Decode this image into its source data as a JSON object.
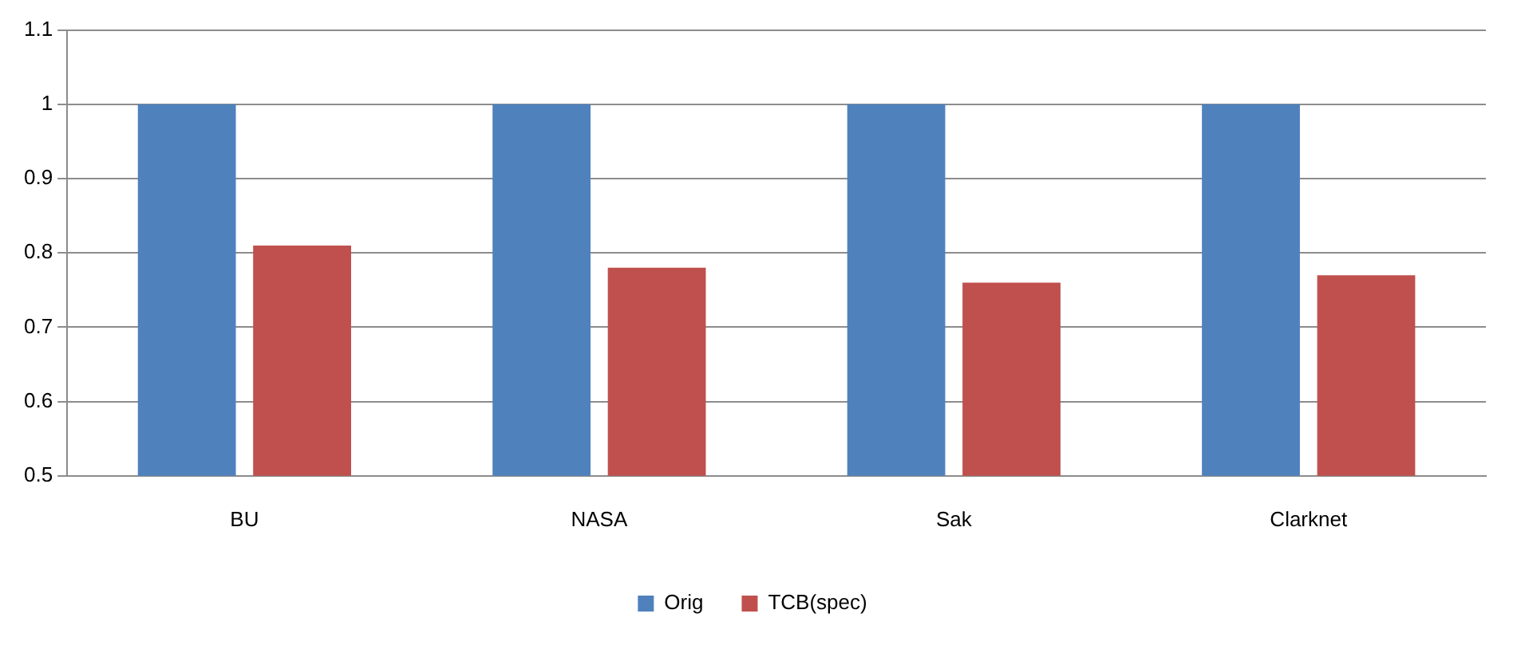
{
  "chart_data": {
    "type": "bar",
    "categories": [
      "BU",
      "NASA",
      "Sak",
      "Clarknet"
    ],
    "series": [
      {
        "name": "Orig",
        "color": "#4f81bd",
        "values": [
          1,
          1,
          1,
          1
        ]
      },
      {
        "name": "TCB(spec)",
        "color": "#c0504d",
        "values": [
          0.81,
          0.78,
          0.76,
          0.77
        ]
      }
    ],
    "ylim": [
      0.5,
      1.1
    ],
    "yticks": [
      {
        "value": 0.5,
        "label": "0.5"
      },
      {
        "value": 0.6,
        "label": "0.6"
      },
      {
        "value": 0.7,
        "label": "0.7"
      },
      {
        "value": 0.8,
        "label": "0.8"
      },
      {
        "value": 0.9,
        "label": "0.9"
      },
      {
        "value": 1,
        "label": "1"
      },
      {
        "value": 1.1,
        "label": "1.1"
      }
    ],
    "grid": "y",
    "legend": "bottom"
  }
}
